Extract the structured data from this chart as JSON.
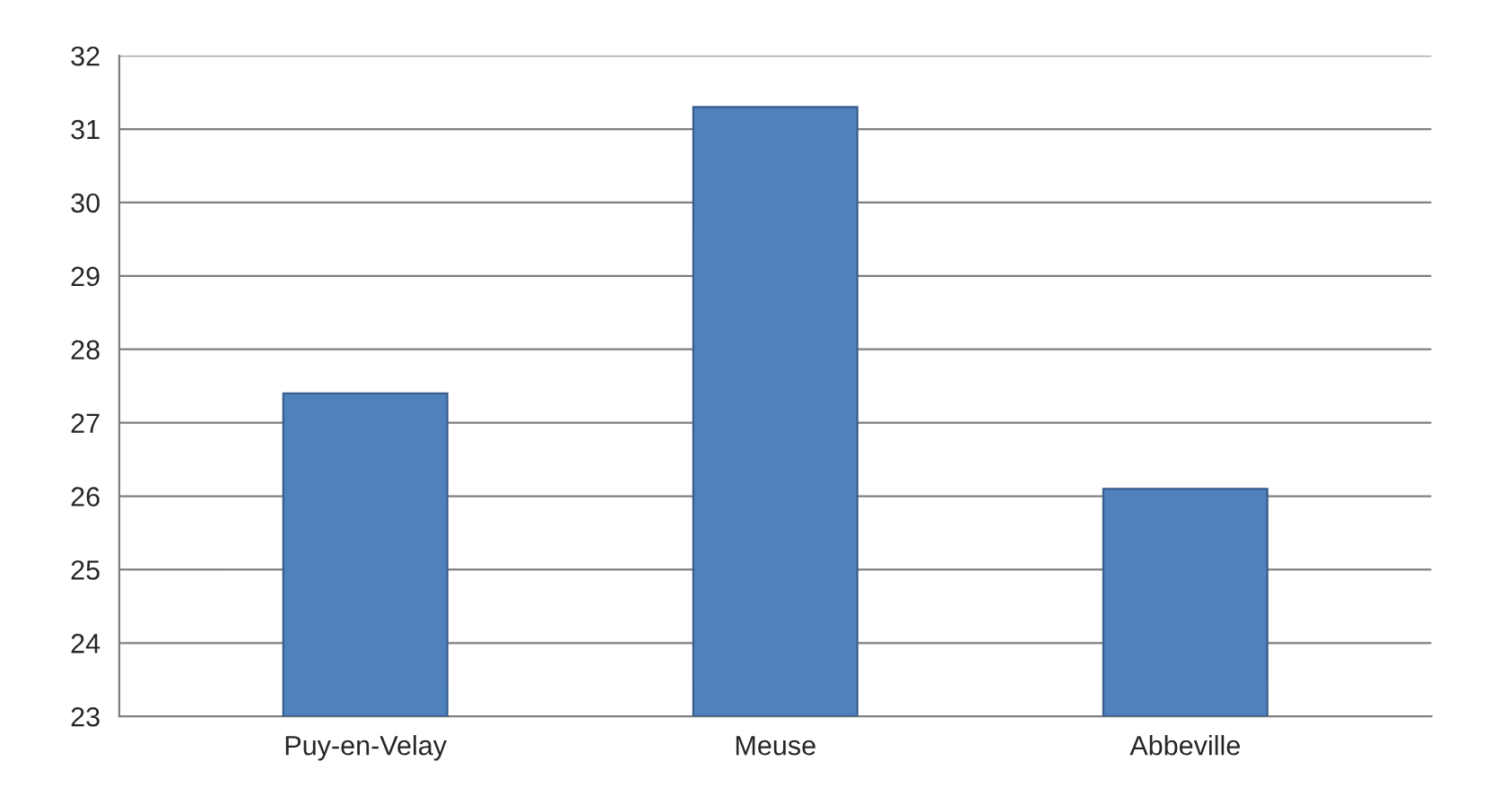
{
  "chart_data": {
    "type": "bar",
    "categories": [
      "Puy-en-Velay",
      "Meuse",
      "Abbeville"
    ],
    "values": [
      27.4,
      31.3,
      26.1
    ],
    "color": "#4f81bd",
    "ylim": [
      23,
      32
    ],
    "yticks": [
      23,
      24,
      25,
      26,
      27,
      28,
      29,
      30,
      31,
      32
    ],
    "grid": "y",
    "legend": false
  }
}
